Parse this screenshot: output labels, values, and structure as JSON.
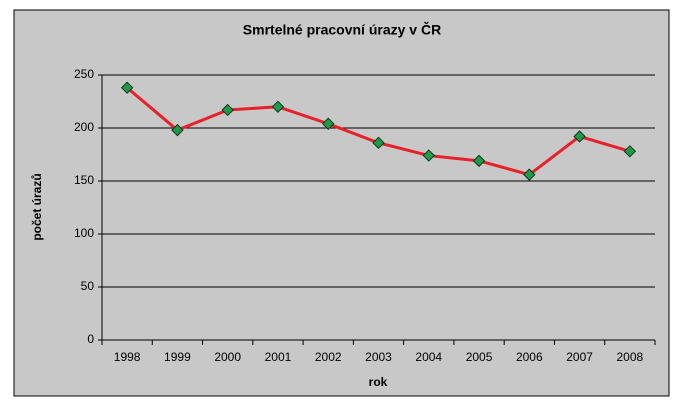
{
  "chart_data": {
    "type": "line",
    "title": "Smrtelné pracovní úrazy v ČR",
    "x_label": "rok",
    "y_label": "počet úrazů",
    "categories": [
      "1998",
      "1999",
      "2000",
      "2001",
      "2002",
      "2003",
      "2004",
      "2005",
      "2006",
      "2007",
      "2008"
    ],
    "series": [
      {
        "color": "#e8202a",
        "marker_color": "#1e9a4a",
        "values": [
          238,
          198,
          217,
          220,
          204,
          186,
          174,
          169,
          156,
          192,
          178
        ]
      }
    ],
    "ylim": [
      0,
      250
    ],
    "yticks": [
      0,
      50,
      100,
      150,
      200,
      250
    ],
    "grid": true
  }
}
